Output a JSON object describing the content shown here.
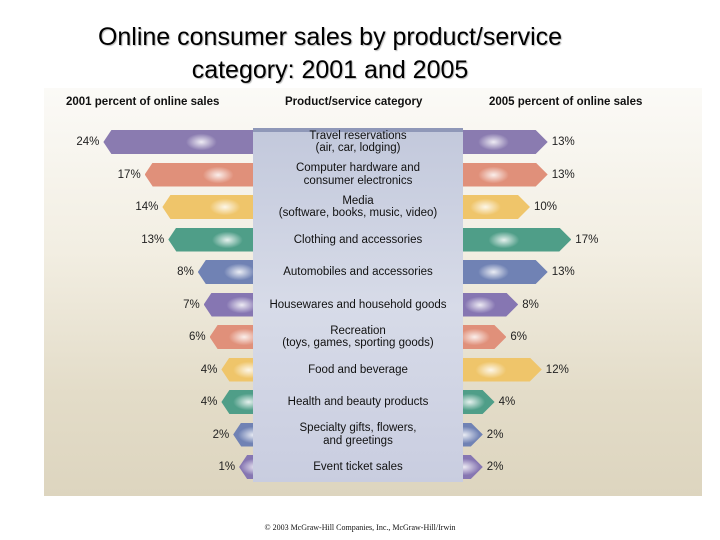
{
  "title_line1": "Online consumer sales by product/service",
  "title_line2": "category:  2001 and 2005",
  "headers": {
    "left": "2001 percent of online sales",
    "center": "Product/service category",
    "right": "2005 percent of online sales"
  },
  "copyright": "© 2003 McGraw-Hill Companies, Inc., McGraw-Hill/Irwin",
  "rows": [
    {
      "line1": "Travel reservations",
      "line2": "(air, car, lodging)",
      "y2001": "24%",
      "y2005": "13%",
      "color": "#8a7bb0"
    },
    {
      "line1": "Computer hardware and",
      "line2": "consumer electronics",
      "y2001": "17%",
      "y2005": "13%",
      "color": "#e0907a"
    },
    {
      "line1": "Media",
      "line2": "(software, books, music, video)",
      "y2001": "14%",
      "y2005": "10%",
      "color": "#efc56a"
    },
    {
      "line1": "Clothing and accessories",
      "line2": "",
      "y2001": "13%",
      "y2005": "17%",
      "color": "#4f9e88"
    },
    {
      "line1": "Automobiles and accessories",
      "line2": "",
      "y2001": "8%",
      "y2005": "13%",
      "color": "#7082b4"
    },
    {
      "line1": "Housewares and household goods",
      "line2": "",
      "y2001": "7%",
      "y2005": "8%",
      "color": "#8676b2"
    },
    {
      "line1": "Recreation",
      "line2": "(toys, games, sporting goods)",
      "y2001": "6%",
      "y2005": "6%",
      "color": "#e0907a"
    },
    {
      "line1": "Food and beverage",
      "line2": "",
      "y2001": "4%",
      "y2005": "12%",
      "color": "#efc56a"
    },
    {
      "line1": "Health and beauty products",
      "line2": "",
      "y2001": "4%",
      "y2005": "4%",
      "color": "#4f9e88"
    },
    {
      "line1": "Specialty gifts, flowers,",
      "line2": "and greetings",
      "y2001": "2%",
      "y2005": "2%",
      "color": "#7082b4"
    },
    {
      "line1": "Event ticket sales",
      "line2": "",
      "y2001": "1%",
      "y2005": "2%",
      "color": "#8676b2"
    }
  ],
  "chart_data": {
    "type": "bar",
    "orientation": "horizontal-butterfly",
    "title": "Online consumer sales by product/service category: 2001 and 2005",
    "categories": [
      "Travel reservations (air, car, lodging)",
      "Computer hardware and consumer electronics",
      "Media (software, books, music, video)",
      "Clothing and accessories",
      "Automobiles and accessories",
      "Housewares and household goods",
      "Recreation (toys, games, sporting goods)",
      "Food and beverage",
      "Health and beauty products",
      "Specialty gifts, flowers, and greetings",
      "Event ticket sales"
    ],
    "series": [
      {
        "name": "2001 percent of online sales",
        "values": [
          24,
          17,
          14,
          13,
          8,
          7,
          6,
          4,
          4,
          2,
          1
        ],
        "position": "left"
      },
      {
        "name": "2005 percent of online sales",
        "values": [
          13,
          13,
          10,
          17,
          13,
          8,
          6,
          12,
          4,
          2,
          2
        ],
        "position": "right"
      }
    ],
    "xlabel": "",
    "ylabel": "Product/service category",
    "unit": "%",
    "grid": false,
    "legend": "column headers at top"
  }
}
